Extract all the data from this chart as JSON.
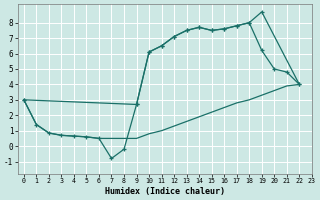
{
  "xlabel": "Humidex (Indice chaleur)",
  "bg_color": "#cde8e4",
  "grid_color": "#ffffff",
  "line_color": "#1a7068",
  "xlim": [
    -0.5,
    23
  ],
  "ylim": [
    -1.8,
    9.2
  ],
  "yticks": [
    -1,
    0,
    1,
    2,
    3,
    4,
    5,
    6,
    7,
    8
  ],
  "xticks": [
    0,
    1,
    2,
    3,
    4,
    5,
    6,
    7,
    8,
    9,
    10,
    11,
    12,
    13,
    14,
    15,
    16,
    17,
    18,
    19,
    20,
    21,
    22,
    23
  ],
  "line_upper_x": [
    0,
    9,
    10,
    11,
    12,
    13,
    14,
    15,
    16,
    17,
    18,
    19,
    22
  ],
  "line_upper_y": [
    3.0,
    2.7,
    6.1,
    6.5,
    7.1,
    7.5,
    7.7,
    7.5,
    7.6,
    7.8,
    8.0,
    8.7,
    4.0
  ],
  "line_mid_x": [
    0,
    1,
    2,
    3,
    4,
    5,
    6,
    7,
    8,
    9,
    10,
    11,
    12,
    13,
    14,
    15,
    16,
    17,
    18,
    19,
    20,
    21,
    22
  ],
  "line_mid_y": [
    3.0,
    1.4,
    0.85,
    0.7,
    0.65,
    0.6,
    0.5,
    0.5,
    0.5,
    0.5,
    0.8,
    1.0,
    1.3,
    1.6,
    1.9,
    2.2,
    2.5,
    2.8,
    3.0,
    3.3,
    3.6,
    3.9,
    4.0
  ],
  "line_dip_x": [
    0,
    1,
    2,
    3,
    4,
    5,
    6,
    7,
    8,
    9,
    10,
    11,
    12,
    13,
    14,
    15,
    16,
    17,
    18,
    19,
    20,
    21,
    22
  ],
  "line_dip_y": [
    3.0,
    1.4,
    0.85,
    0.7,
    0.65,
    0.6,
    0.5,
    -0.8,
    -0.2,
    2.7,
    6.1,
    6.5,
    7.1,
    7.5,
    7.7,
    7.5,
    7.6,
    7.8,
    8.0,
    6.2,
    5.0,
    4.8,
    4.0
  ]
}
